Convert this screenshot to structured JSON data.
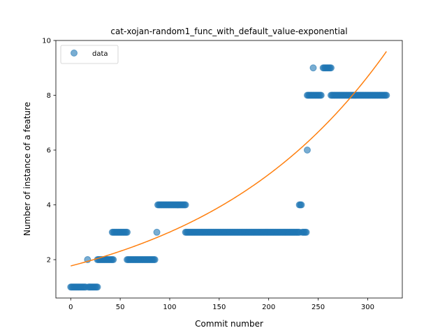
{
  "chart_data": {
    "type": "scatter",
    "title": "cat-xojan-random1_func_with_default_value-exponential",
    "xlabel": "Commit number",
    "ylabel": "Number of instance of a feature",
    "xlim": [
      -15,
      335
    ],
    "ylim": [
      0.6,
      10
    ],
    "xticks": [
      0,
      50,
      100,
      150,
      200,
      250,
      300
    ],
    "yticks": [
      2,
      4,
      6,
      8,
      10
    ],
    "grid": false,
    "legend": {
      "position": "top-left",
      "entries": [
        "data"
      ]
    },
    "colors": {
      "data": "#1f77b4",
      "fit": "#ff7f0e"
    },
    "series": [
      {
        "name": "data",
        "kind": "points",
        "segments": [
          {
            "x_start": 0,
            "x_end": 15,
            "y": 1
          },
          {
            "x": 17,
            "y": 2
          },
          {
            "x_start": 18,
            "x_end": 27,
            "y": 1
          },
          {
            "x_start": 27,
            "x_end": 43,
            "y": 2
          },
          {
            "x_start": 42,
            "x_end": 57,
            "y": 3
          },
          {
            "x_start": 57,
            "x_end": 85,
            "y": 2
          },
          {
            "x": 87,
            "y": 3
          },
          {
            "x_start": 88,
            "x_end": 116,
            "y": 4
          },
          {
            "x_start": 116,
            "x_end": 231,
            "y": 3
          },
          {
            "x_start": 231,
            "x_end": 233,
            "y": 4
          },
          {
            "x_start": 234,
            "x_end": 238,
            "y": 3
          },
          {
            "x": 239,
            "y": 6
          },
          {
            "x_start": 239,
            "x_end": 253,
            "y": 8
          },
          {
            "x": 245,
            "y": 9
          },
          {
            "x_start": 255,
            "x_end": 263,
            "y": 9
          },
          {
            "x_start": 263,
            "x_end": 319,
            "y": 8
          }
        ]
      },
      {
        "name": "",
        "kind": "exponential-fit",
        "a": 1.77,
        "b": 0.0053,
        "x_range": [
          0,
          319
        ]
      }
    ]
  }
}
